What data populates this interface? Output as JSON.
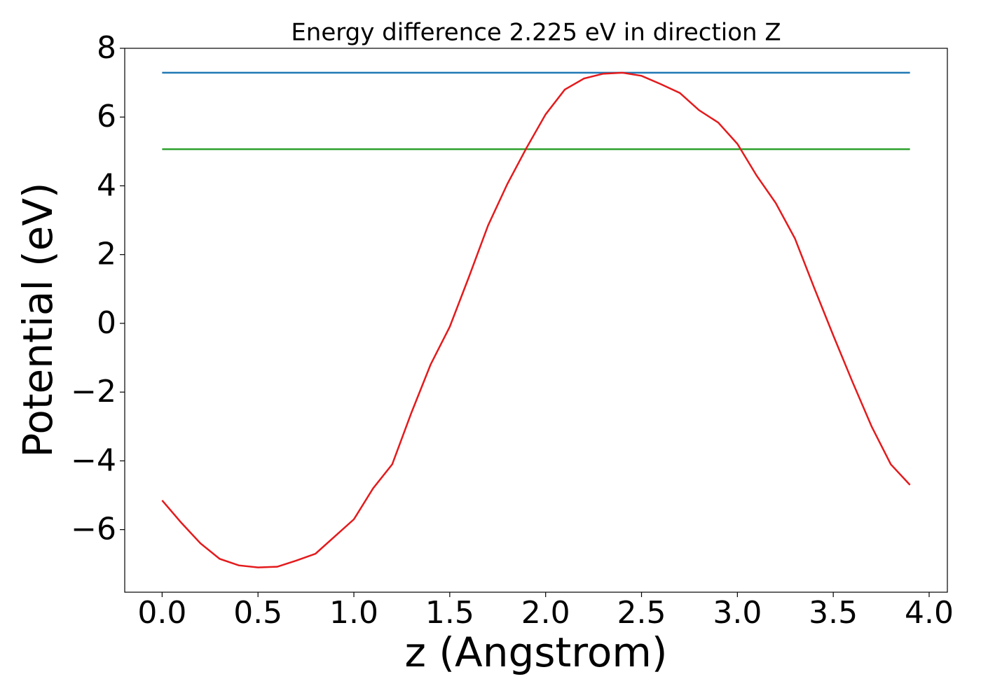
{
  "chart_data": {
    "type": "line",
    "title": "Energy difference 2.225 eV in direction Z",
    "x_label": "z (Angstrom)",
    "y_label": "Potential (eV)",
    "series": [
      {
        "color": "#1f77b4",
        "x": [
          0.0,
          3.9
        ],
        "values": [
          7.29,
          7.29
        ]
      },
      {
        "color": "#2ca02c",
        "x": [
          0.0,
          3.9
        ],
        "values": [
          5.065,
          5.065
        ]
      },
      {
        "color": "#e41a1c",
        "x": [
          0.0,
          0.1,
          0.2,
          0.3,
          0.4,
          0.5,
          0.6,
          0.7,
          0.8,
          0.9,
          1.0,
          1.1,
          1.2,
          1.3,
          1.4,
          1.5,
          1.6,
          1.7,
          1.8,
          1.9,
          2.0,
          2.1,
          2.2,
          2.3,
          2.4,
          2.5,
          2.6,
          2.7,
          2.8,
          2.9,
          3.0,
          3.1,
          3.2,
          3.3,
          3.4,
          3.5,
          3.6,
          3.7,
          3.8,
          3.9
        ],
        "values": [
          -5.15,
          -5.8,
          -6.4,
          -6.85,
          -7.04,
          -7.1,
          -7.08,
          -6.9,
          -6.7,
          -6.2,
          -5.7,
          -4.8,
          -4.1,
          -2.6,
          -1.2,
          -0.1,
          1.35,
          2.85,
          4.05,
          5.1,
          6.08,
          6.8,
          7.12,
          7.26,
          7.29,
          7.2,
          6.96,
          6.7,
          6.2,
          5.84,
          5.22,
          4.3,
          3.5,
          2.47,
          1.04,
          -0.35,
          -1.7,
          -3.0,
          -4.1,
          -4.7
        ]
      }
    ],
    "xlim": [
      -0.195,
      4.095
    ],
    "ylim": [
      -7.82,
      8.0
    ],
    "xticks": [
      {
        "value": 0,
        "label": "0.0"
      },
      {
        "value": 0.5,
        "label": "0.5"
      },
      {
        "value": 1,
        "label": "1.0"
      },
      {
        "value": 1.5,
        "label": "1.5"
      },
      {
        "value": 2,
        "label": "2.0"
      },
      {
        "value": 2.5,
        "label": "2.5"
      },
      {
        "value": 3,
        "label": "3.0"
      },
      {
        "value": 3.5,
        "label": "3.5"
      },
      {
        "value": 4,
        "label": "4.0"
      }
    ],
    "yticks": [
      {
        "value": -6,
        "label": "−6"
      },
      {
        "value": -4,
        "label": "−4"
      },
      {
        "value": -2,
        "label": "−2"
      },
      0,
      2,
      4,
      6,
      8
    ],
    "grid": false
  }
}
